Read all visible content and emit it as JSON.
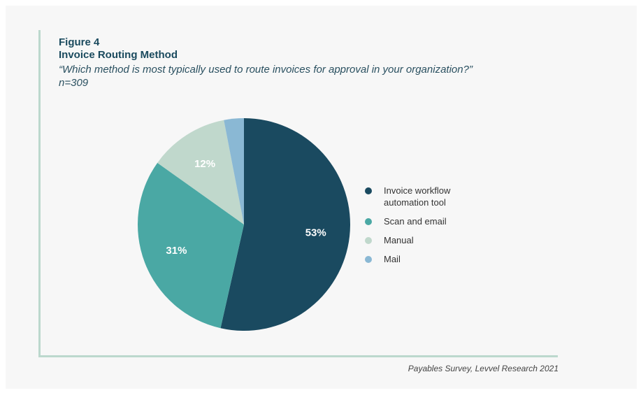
{
  "figure": {
    "label": "Figure 4",
    "title": "Invoice Routing Method",
    "subtitle": "“Which method is most typically used to route invoices for approval in your organization?”",
    "n": "n=309"
  },
  "source": "Payables Survey, Levvel Research 2021",
  "chart_data": {
    "type": "pie",
    "title": "Invoice Routing Method",
    "slices": [
      {
        "label": "Invoice workflow automation tool",
        "value": 53,
        "display": "53%",
        "color": "#1a4a60"
      },
      {
        "label": "Scan and email",
        "value": 31,
        "display": "31%",
        "color": "#4aa8a4"
      },
      {
        "label": "Manual",
        "value": 12,
        "display": "12%",
        "color": "#c0d8cc"
      },
      {
        "label": "Mail",
        "value": 3,
        "display": "",
        "color": "#8ab8d4"
      }
    ],
    "legend_position": "right"
  },
  "legend": {
    "items": [
      {
        "label_line1": "Invoice workflow",
        "label_line2": "automation tool",
        "color": "#1a4a60"
      },
      {
        "label_line1": "Scan and email",
        "label_line2": "",
        "color": "#4aa8a4"
      },
      {
        "label_line1": "Manual",
        "label_line2": "",
        "color": "#c0d8cc"
      },
      {
        "label_line1": "Mail",
        "label_line2": "",
        "color": "#8ab8d4"
      }
    ]
  }
}
